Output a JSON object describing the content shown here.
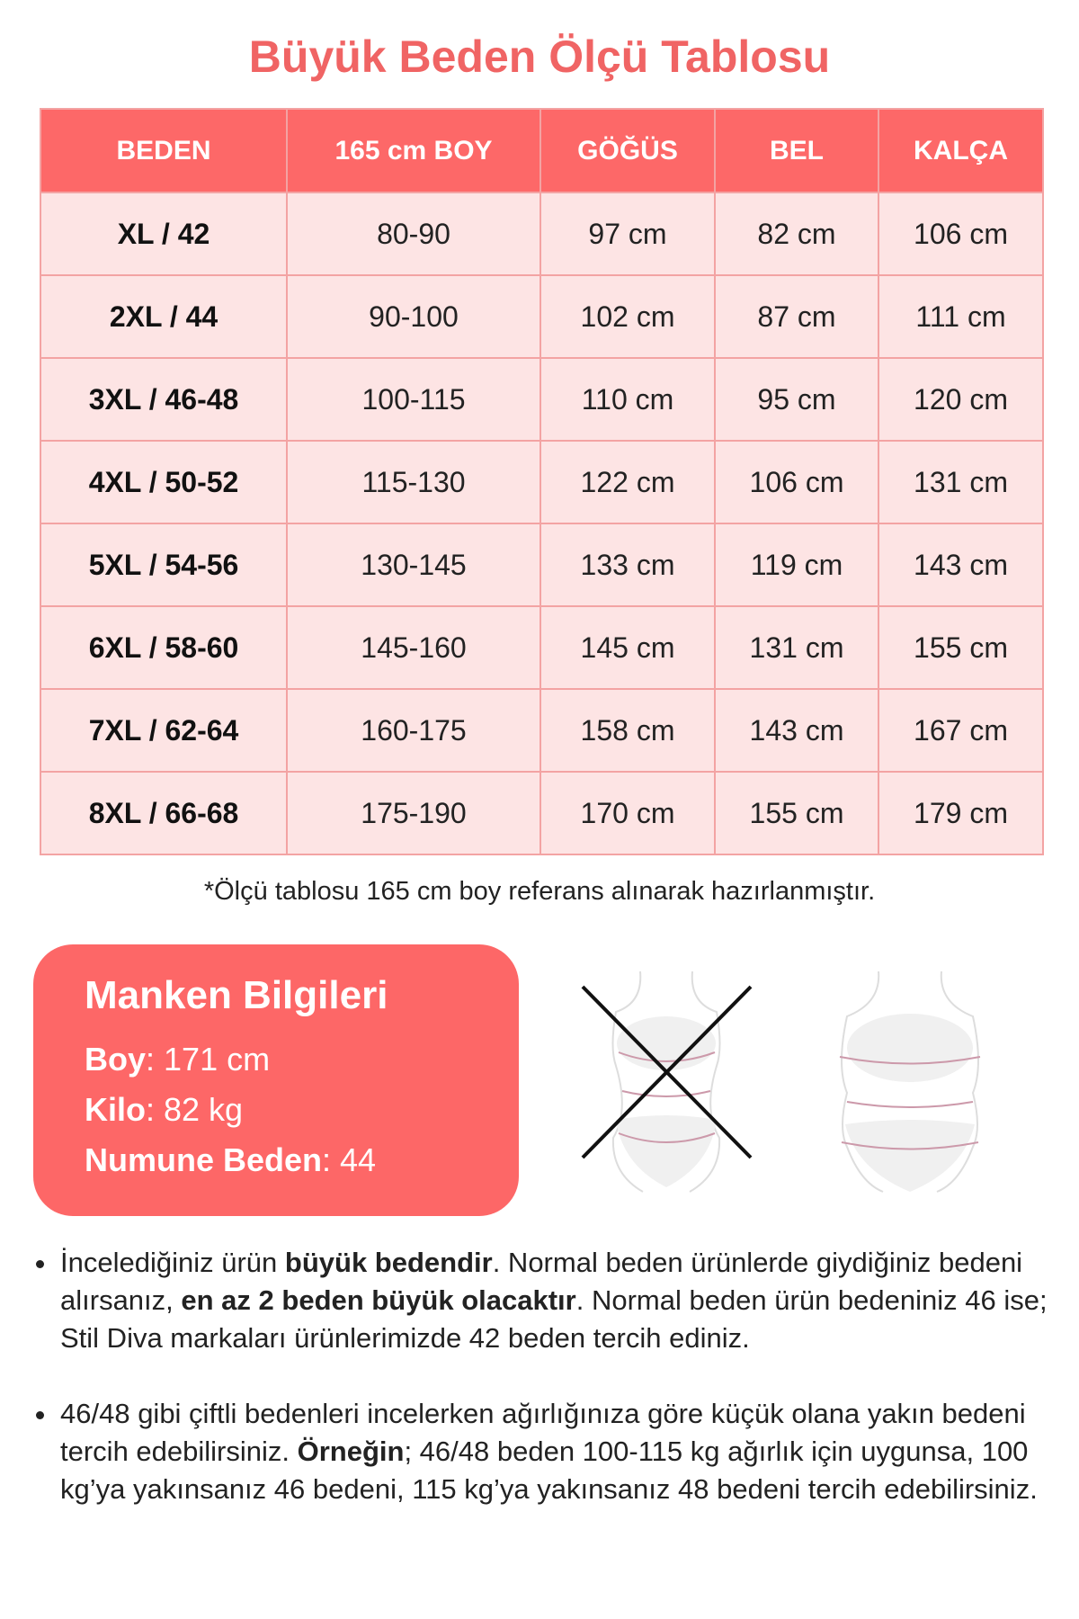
{
  "title": "Büyük Beden Ölçü Tablosu",
  "colors": {
    "accent": "#fd6767",
    "cell": "#fde4e4",
    "title": "#f06464"
  },
  "table": {
    "headers": [
      "BEDEN",
      "165 cm BOY",
      "GÖĞÜS",
      "BEL",
      "KALÇA"
    ],
    "rows": [
      [
        "XL / 42",
        "80-90",
        "97 cm",
        "82 cm",
        "106 cm"
      ],
      [
        "2XL / 44",
        "90-100",
        "102 cm",
        "87 cm",
        "111 cm"
      ],
      [
        "3XL / 46-48",
        "100-115",
        "110 cm",
        "95 cm",
        "120 cm"
      ],
      [
        "4XL / 50-52",
        "115-130",
        "122 cm",
        "106 cm",
        "131 cm"
      ],
      [
        "5XL / 54-56",
        "130-145",
        "133 cm",
        "119 cm",
        "143 cm"
      ],
      [
        "6XL / 58-60",
        "145-160",
        "145 cm",
        "131 cm",
        "155 cm"
      ],
      [
        "7XL / 62-64",
        "160-175",
        "158 cm",
        "143 cm",
        "167 cm"
      ],
      [
        "8XL / 66-68",
        "175-190",
        "170 cm",
        "155 cm",
        "179 cm"
      ]
    ]
  },
  "note": "*Ölçü tablosu 165 cm boy referans alınarak hazırlanmıştır.",
  "model": {
    "title": "Manken Bilgileri",
    "items": [
      {
        "label": "Boy",
        "value": ": 171 cm"
      },
      {
        "label": "Kilo",
        "value": ": 82 kg"
      },
      {
        "label": "Numune Beden",
        "value": ": 44"
      }
    ]
  },
  "figures": {
    "wrong": "body-figure-crossed-icon",
    "right": "body-figure-icon"
  },
  "bullets": [
    [
      {
        "t": "İncelediğiniz ürün "
      },
      {
        "t": "büyük bedendir",
        "b": true
      },
      {
        "t": ". Normal beden ürünlerde giydiğiniz bedeni alırsanız, "
      },
      {
        "t": "en az 2 beden büyük olacaktır",
        "b": true
      },
      {
        "t": ". Normal beden ürün bedeniniz 46 ise; Stil Diva markaları ürünlerimizde 42 beden tercih ediniz."
      }
    ],
    [
      {
        "t": "46/48 gibi çiftli bedenleri incelerken ağırlığınıza göre küçük olana yakın bedeni tercih edebilirsiniz. "
      },
      {
        "t": "Örneğin",
        "b": true
      },
      {
        "t": "; 46/48 beden 100-115 kg ağırlık için uygunsa, 100 kg’ya yakınsanız 46 bedeni, 115 kg’ya yakınsanız 48 bedeni tercih edebilirsiniz."
      }
    ]
  ]
}
